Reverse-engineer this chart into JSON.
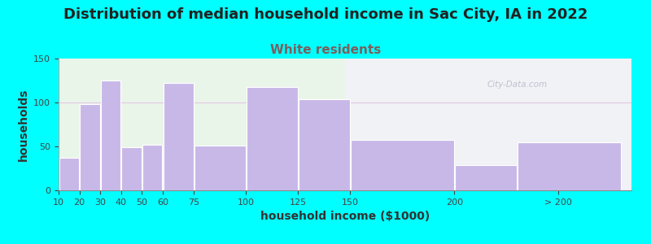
{
  "title": "Distribution of median household income in Sac City, IA in 2022",
  "subtitle": "White residents",
  "xlabel": "household income ($1000)",
  "ylabel": "households",
  "background_color": "#00FFFF",
  "bar_color": "#c8b8e8",
  "bar_edge_color": "#ffffff",
  "categories": [
    "10",
    "20",
    "30",
    "40",
    "50",
    "60",
    "75",
    "100",
    "125",
    "150",
    "200",
    "> 200"
  ],
  "left_edges": [
    10,
    20,
    30,
    40,
    50,
    60,
    75,
    100,
    125,
    150,
    200,
    230
  ],
  "widths": [
    10,
    10,
    10,
    10,
    10,
    15,
    25,
    25,
    25,
    50,
    30,
    50
  ],
  "values": [
    37,
    98,
    125,
    49,
    52,
    122,
    51,
    118,
    104,
    57,
    29,
    55
  ],
  "ylim": [
    0,
    150
  ],
  "xlim": [
    10,
    285
  ],
  "yticks": [
    0,
    50,
    100,
    150
  ],
  "xtick_positions": [
    10,
    20,
    30,
    40,
    50,
    60,
    75,
    100,
    125,
    150,
    200,
    250
  ],
  "xtick_labels": [
    "10",
    "20",
    "30",
    "40",
    "50",
    "60",
    "75",
    "100",
    "125",
    "150",
    "200",
    "> 200"
  ],
  "title_fontsize": 13,
  "subtitle_fontsize": 11,
  "subtitle_color": "#7a6060",
  "axis_label_fontsize": 10,
  "watermark_text": "City-Data.com",
  "watermark_color": "#b8b8c8",
  "bg_left_color": "#eaf5ea",
  "bg_right_color": "#f5f0ff",
  "hline_color": "#e0c8e0",
  "hline_y": 100
}
